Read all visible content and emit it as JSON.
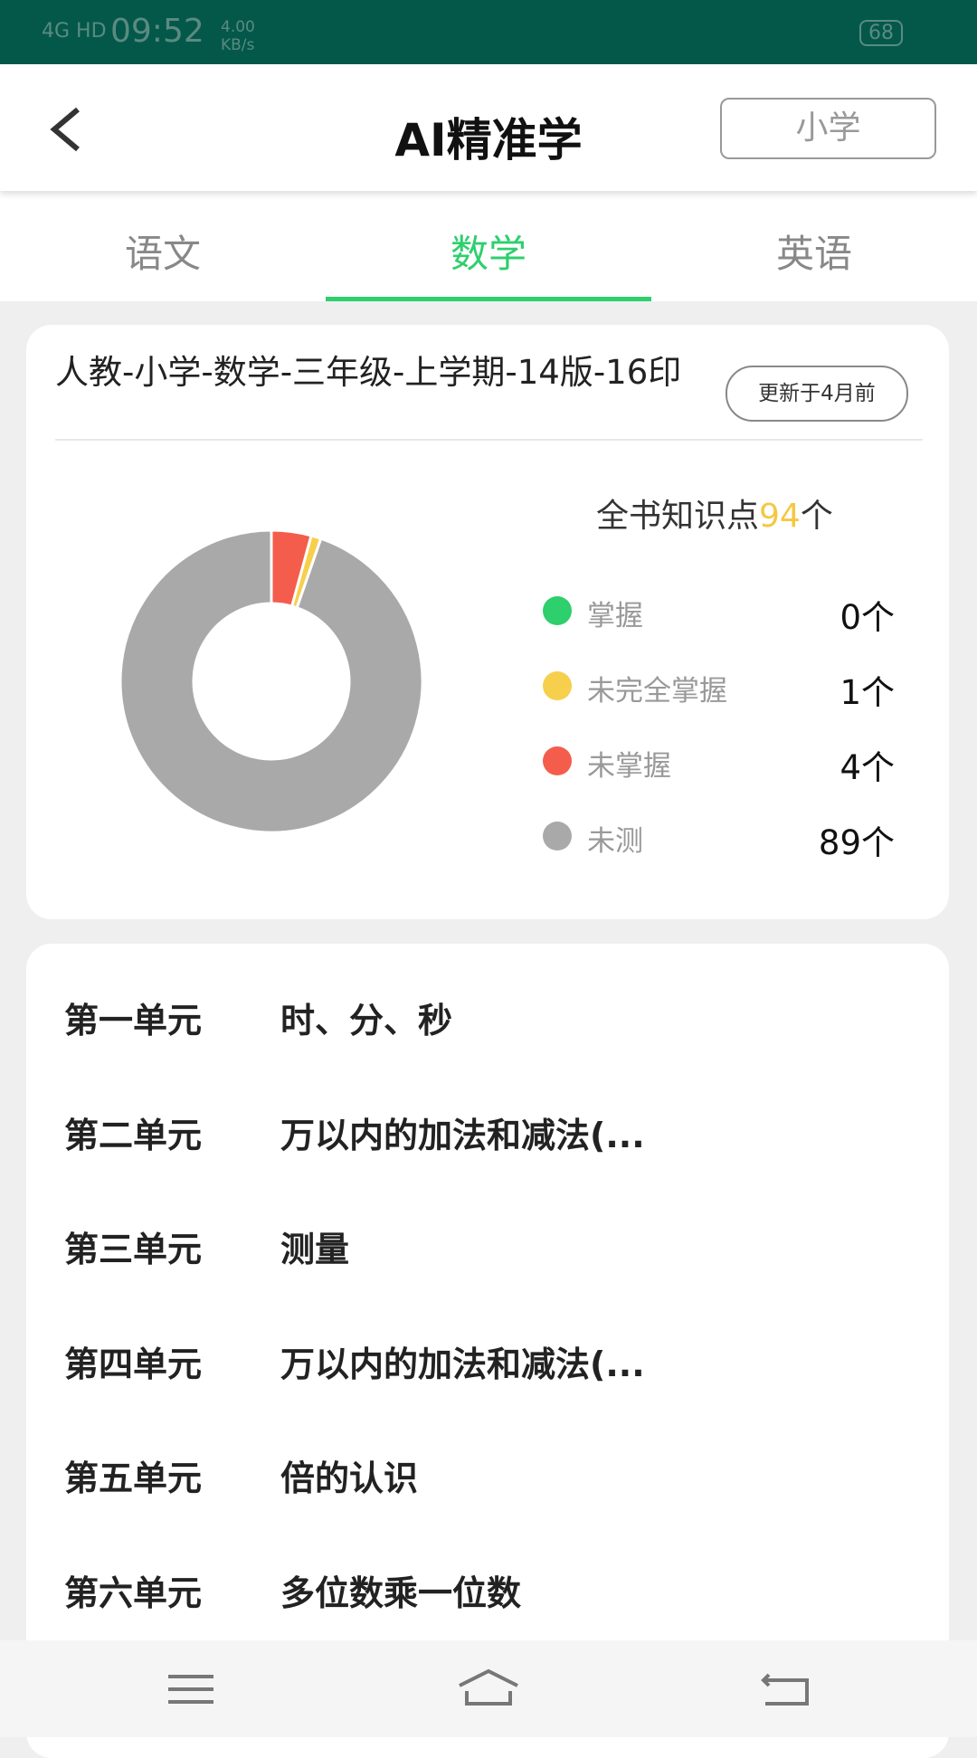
{
  "status_bar": {
    "network": "4G HD",
    "time": "09:52",
    "speed": "4.00 KB/s",
    "battery": "68"
  },
  "header": {
    "title": "AI精准学",
    "level_button": "小学"
  },
  "tabs": [
    "语文",
    "数学",
    "英语"
  ],
  "active_tab": 1,
  "book": {
    "title": "人教-小学-数学-三年级-上学期-14版-16印",
    "updated": "更新于4月前",
    "summary": {
      "prefix": "全书知识点",
      "total": "94",
      "suffix": "个"
    }
  },
  "chart_data": {
    "type": "donut",
    "categories": [
      "掌握",
      "未完全掌握",
      "未掌握",
      "未测"
    ],
    "values": [
      0,
      1,
      4,
      89
    ],
    "value_labels": [
      "0个",
      "1个",
      "4个",
      "89个"
    ],
    "colors": [
      "#2ecf6d",
      "#f6d04d",
      "#f45d4c",
      "#a9a9a9"
    ]
  },
  "units": [
    {
      "number": "第一单元",
      "title": "时、分、秒"
    },
    {
      "number": "第二单元",
      "title": "万以内的加法和减法(..."
    },
    {
      "number": "第三单元",
      "title": "测量"
    },
    {
      "number": "第四单元",
      "title": "万以内的加法和减法(..."
    },
    {
      "number": "第五单元",
      "title": "倍的认识"
    },
    {
      "number": "第六单元",
      "title": "多位数乘一位数"
    }
  ]
}
